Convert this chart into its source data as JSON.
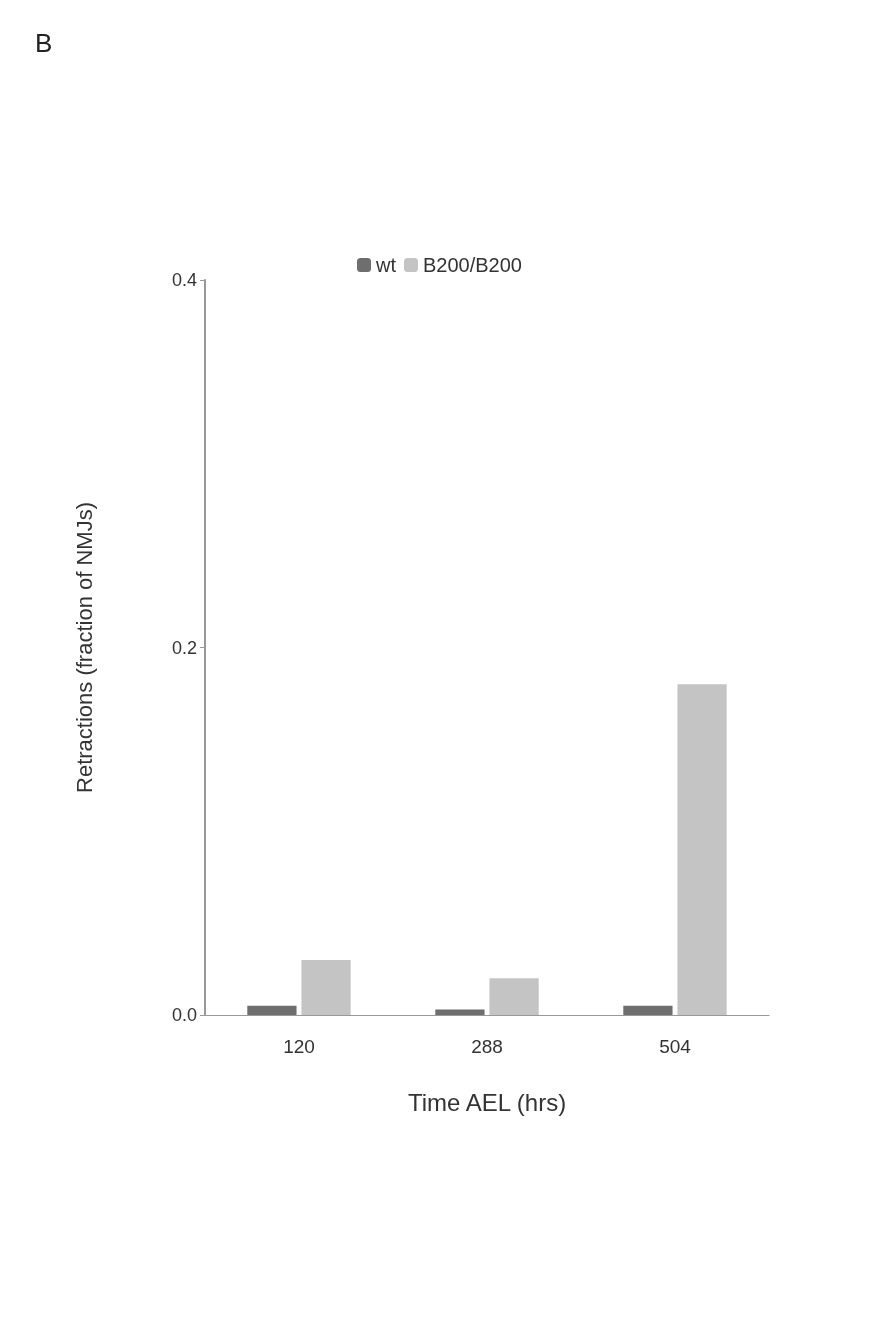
{
  "chart_data": {
    "type": "bar",
    "title": "B",
    "xlabel": "Time AEL (hrs)",
    "ylabel": "Retractions (fraction of NMJs)",
    "categories": [
      "120",
      "288",
      "504"
    ],
    "series": [
      {
        "name": "wt",
        "color": "#6e6e6e",
        "values": [
          0.005,
          0.003,
          0.005
        ]
      },
      {
        "name": "B200/B200",
        "color": "#c4c4c4",
        "values": [
          0.03,
          0.02,
          0.18
        ]
      }
    ],
    "ylim": [
      0,
      0.4
    ],
    "yticks": [
      {
        "value": 0,
        "label": "0.0"
      },
      0.2,
      0.4
    ],
    "grid": false,
    "legend": "top"
  }
}
